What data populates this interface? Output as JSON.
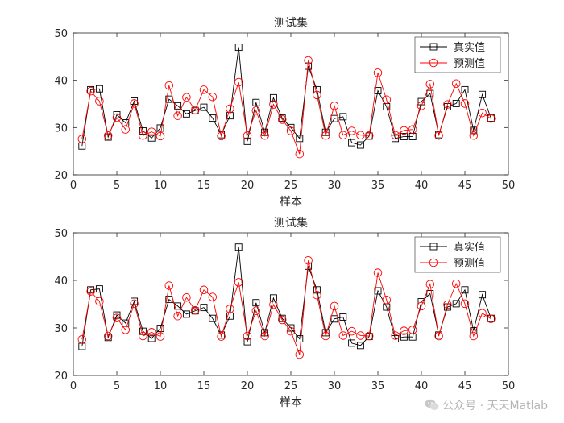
{
  "chart_data": [
    {
      "type": "line",
      "title": "测试集",
      "xlabel": "样本",
      "ylabel": "",
      "xlim": [
        0,
        50
      ],
      "ylim": [
        20,
        50
      ],
      "xticks": [
        0,
        5,
        10,
        15,
        20,
        25,
        30,
        35,
        40,
        45,
        50
      ],
      "yticks": [
        20,
        30,
        40,
        50
      ],
      "grid": false,
      "legend_position": "top-right",
      "x": [
        1,
        2,
        3,
        4,
        5,
        6,
        7,
        8,
        9,
        10,
        11,
        12,
        13,
        14,
        15,
        16,
        17,
        18,
        19,
        20,
        21,
        22,
        23,
        24,
        25,
        26,
        27,
        28,
        29,
        30,
        31,
        32,
        33,
        34,
        35,
        36,
        37,
        38,
        39,
        40,
        41,
        42,
        43,
        44,
        45,
        46,
        47,
        48
      ],
      "series": [
        {
          "name": "真实值",
          "color": "#000000",
          "marker": "square",
          "values": [
            26.1,
            38.0,
            38.2,
            28.0,
            32.7,
            31.0,
            35.6,
            29.3,
            27.8,
            29.9,
            36.0,
            34.6,
            32.9,
            33.6,
            34.3,
            32.0,
            28.5,
            32.5,
            47.0,
            27.1,
            35.3,
            29.0,
            36.3,
            32.0,
            30.0,
            27.7,
            43.0,
            38.0,
            29.0,
            31.9,
            32.3,
            26.8,
            26.3,
            28.2,
            37.8,
            34.4,
            27.7,
            28.1,
            28.1,
            35.5,
            37.2,
            28.5,
            34.4,
            35.1,
            38.0,
            29.4,
            37.0,
            32.0
          ]
        },
        {
          "name": "预测值",
          "color": "#ff0000",
          "marker": "circle",
          "values": [
            27.6,
            37.7,
            35.6,
            28.3,
            32.1,
            29.6,
            35.1,
            28.3,
            29.1,
            28.2,
            38.9,
            32.5,
            36.4,
            33.7,
            38.0,
            36.5,
            28.2,
            34.0,
            39.6,
            28.3,
            33.6,
            28.3,
            34.9,
            31.7,
            29.3,
            24.4,
            44.2,
            36.9,
            28.3,
            34.6,
            28.4,
            29.3,
            28.4,
            28.3,
            41.6,
            35.9,
            28.4,
            29.4,
            29.6,
            34.6,
            39.2,
            28.3,
            34.9,
            39.3,
            35.1,
            28.3,
            33.1,
            31.9
          ]
        }
      ]
    },
    {
      "type": "line",
      "title": "测试集",
      "xlabel": "样本",
      "ylabel": "",
      "xlim": [
        0,
        50
      ],
      "ylim": [
        20,
        50
      ],
      "xticks": [
        0,
        5,
        10,
        15,
        20,
        25,
        30,
        35,
        40,
        45,
        50
      ],
      "yticks": [
        20,
        30,
        40,
        50
      ],
      "grid": false,
      "legend_position": "top-right",
      "x": [
        1,
        2,
        3,
        4,
        5,
        6,
        7,
        8,
        9,
        10,
        11,
        12,
        13,
        14,
        15,
        16,
        17,
        18,
        19,
        20,
        21,
        22,
        23,
        24,
        25,
        26,
        27,
        28,
        29,
        30,
        31,
        32,
        33,
        34,
        35,
        36,
        37,
        38,
        39,
        40,
        41,
        42,
        43,
        44,
        45,
        46,
        47,
        48
      ],
      "series": [
        {
          "name": "真实值",
          "color": "#000000",
          "marker": "square",
          "values": [
            26.1,
            38.0,
            38.2,
            28.0,
            32.7,
            31.0,
            35.6,
            29.3,
            27.8,
            29.9,
            36.0,
            34.6,
            32.9,
            33.6,
            34.3,
            32.0,
            28.5,
            32.5,
            47.0,
            27.1,
            35.3,
            29.0,
            36.3,
            32.0,
            30.0,
            27.7,
            43.0,
            38.0,
            29.0,
            31.9,
            32.3,
            26.8,
            26.3,
            28.2,
            37.8,
            34.4,
            27.7,
            28.1,
            28.1,
            35.5,
            37.2,
            28.5,
            34.4,
            35.1,
            38.0,
            29.4,
            37.0,
            32.0
          ]
        },
        {
          "name": "预测值",
          "color": "#ff0000",
          "marker": "circle",
          "values": [
            27.6,
            37.7,
            35.6,
            28.3,
            32.1,
            29.6,
            35.1,
            28.3,
            29.1,
            28.2,
            38.9,
            32.5,
            36.4,
            33.7,
            38.0,
            36.5,
            28.2,
            34.0,
            39.6,
            28.3,
            33.6,
            28.3,
            34.9,
            31.7,
            29.3,
            24.4,
            44.2,
            36.9,
            28.3,
            34.6,
            28.4,
            29.3,
            28.4,
            28.3,
            41.6,
            35.9,
            28.4,
            29.4,
            29.6,
            34.6,
            39.2,
            28.3,
            34.9,
            39.3,
            35.1,
            28.3,
            33.1,
            31.9
          ]
        }
      ]
    }
  ],
  "watermark": {
    "icon": "wechat-icon",
    "text": "公众号 · 天天Matlab"
  }
}
